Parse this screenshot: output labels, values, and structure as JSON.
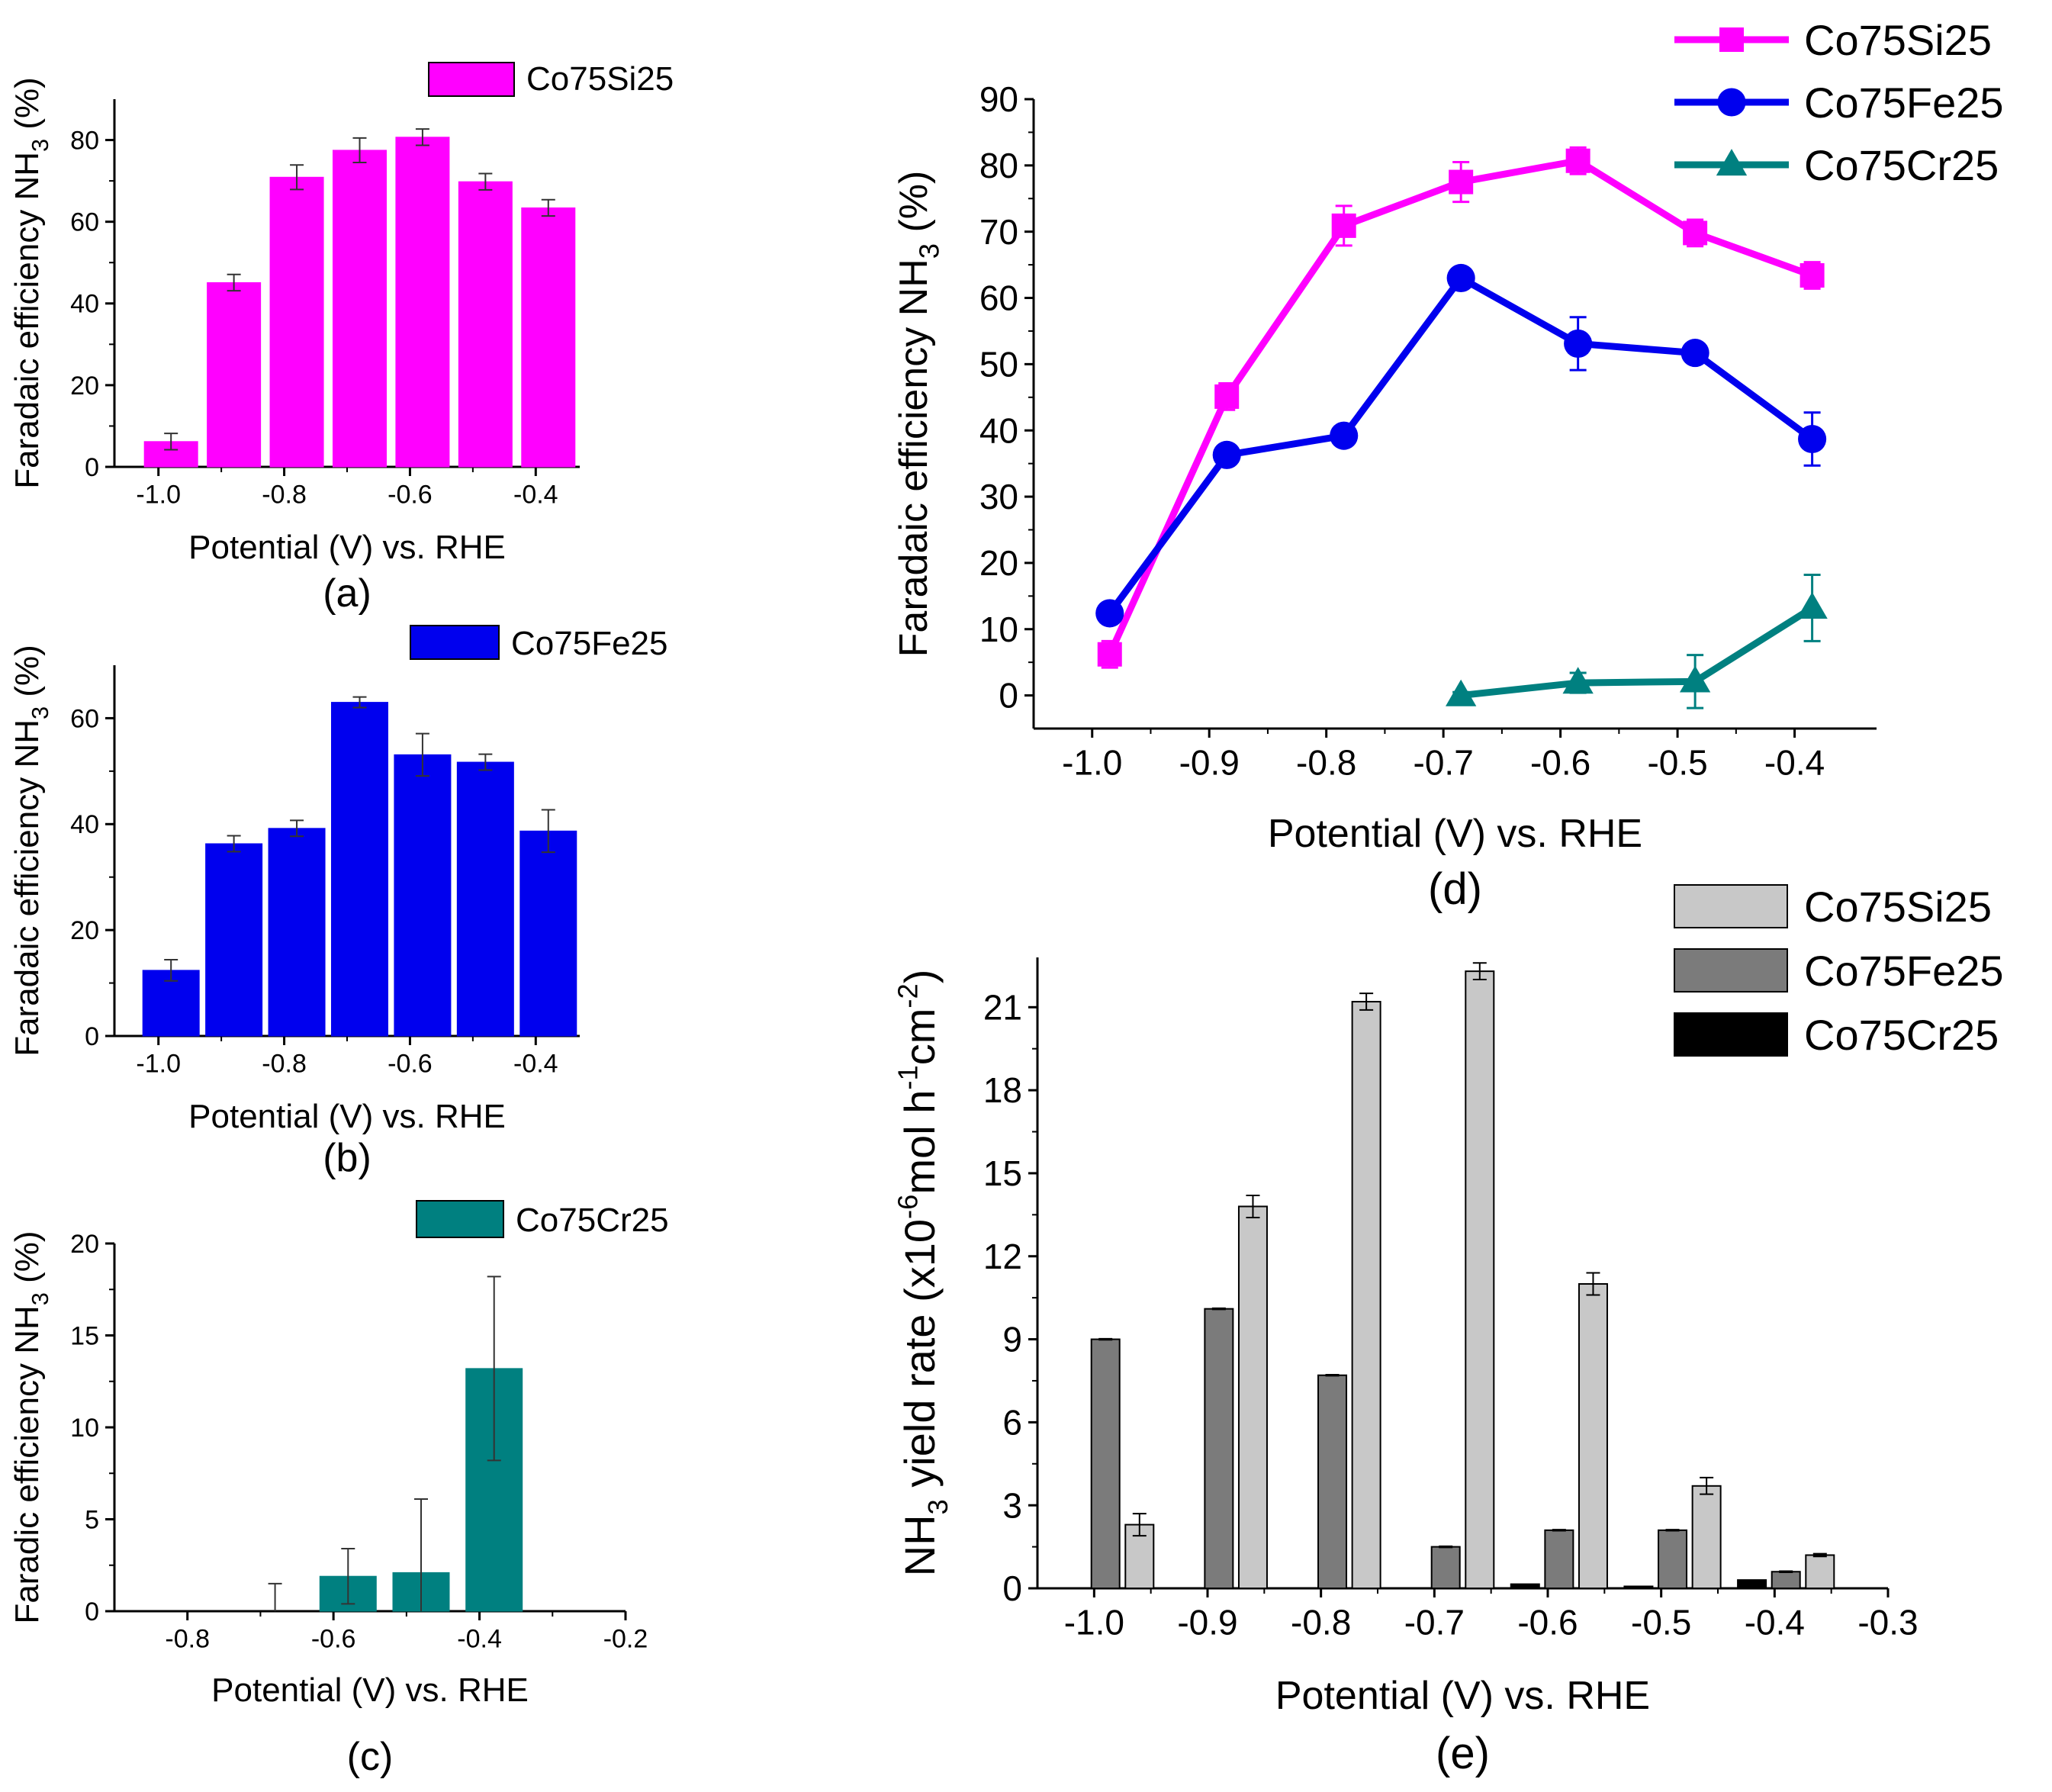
{
  "chart_data": [
    {
      "panel": "a",
      "type": "bar",
      "caption": "(a)",
      "legend": [
        "Co75Si25"
      ],
      "xlabel": "Potential (V) vs. RHE",
      "ylabel": "Faradaic efficiency NH3 (%)",
      "xlim": [
        -1.07,
        -0.33
      ],
      "ylim": [
        0,
        90
      ],
      "xticks": [
        -1.0,
        -0.8,
        -0.6,
        -0.4
      ],
      "xtick_labels": [
        "-1.0",
        "-0.8",
        "-0.6",
        "-0.4"
      ],
      "yticks": [
        0,
        20,
        40,
        60,
        80
      ],
      "ytick_labels": [
        "0",
        "20",
        "40",
        "60",
        "80"
      ],
      "series": [
        {
          "name": "Co75Si25",
          "color": "#ff00ff",
          "x": [
            -0.98,
            -0.88,
            -0.78,
            -0.68,
            -0.58,
            -0.48,
            -0.38
          ],
          "values": [
            6.2,
            45.1,
            70.9,
            77.5,
            80.7,
            69.8,
            63.4
          ],
          "errors": [
            2.0,
            2.0,
            3.0,
            3.0,
            2.0,
            2.0,
            2.0
          ]
        }
      ]
    },
    {
      "panel": "b",
      "type": "bar",
      "caption": "(b)",
      "legend": [
        "Co75Fe25"
      ],
      "xlabel": "Potential (V) vs. RHE",
      "ylabel": "Faradaic efficiency NH3 (%)",
      "xlim": [
        -1.07,
        -0.33
      ],
      "ylim": [
        0,
        70
      ],
      "xticks": [
        -1.0,
        -0.8,
        -0.6,
        -0.4
      ],
      "xtick_labels": [
        "-1.0",
        "-0.8",
        "-0.6",
        "-0.4"
      ],
      "yticks": [
        0,
        20,
        40,
        60
      ],
      "ytick_labels": [
        "0",
        "20",
        "40",
        "60"
      ],
      "series": [
        {
          "name": "Co75Fe25",
          "color": "#0000ee",
          "x": [
            -0.98,
            -0.88,
            -0.78,
            -0.68,
            -0.58,
            -0.48,
            -0.38
          ],
          "values": [
            12.4,
            36.3,
            39.2,
            63.0,
            53.1,
            51.7,
            38.7
          ],
          "errors": [
            2.0,
            1.5,
            1.5,
            1.0,
            4.0,
            1.5,
            4.0
          ]
        }
      ]
    },
    {
      "panel": "c",
      "type": "bar",
      "caption": "(c)",
      "legend": [
        "Co75Cr25"
      ],
      "xlabel": "Potential (V) vs. RHE",
      "ylabel": "Faradic efficiency NH3 (%)",
      "xlim": [
        -0.9,
        -0.2
      ],
      "ylim": [
        0,
        20
      ],
      "xticks": [
        -0.8,
        -0.6,
        -0.4,
        -0.2
      ],
      "xtick_labels": [
        "-0.8",
        "-0.6",
        "-0.4",
        "-0.2"
      ],
      "yticks": [
        0,
        5,
        10,
        15,
        20
      ],
      "ytick_labels": [
        "0",
        "5",
        "10",
        "15",
        "20"
      ],
      "series": [
        {
          "name": "Co75Cr25",
          "color": "#008080",
          "x": [
            -0.68,
            -0.58,
            -0.48,
            -0.38
          ],
          "values": [
            0.0,
            1.9,
            2.1,
            13.2
          ],
          "errors": [
            1.5,
            1.5,
            4.0,
            5.0
          ]
        }
      ]
    },
    {
      "panel": "d",
      "type": "line",
      "caption": "(d)",
      "xlabel": "Potential (V) vs. RHE",
      "ylabel": "Faradaic efficiency NH3 (%)",
      "xlim": [
        -1.05,
        -0.33
      ],
      "ylim": [
        -5,
        90
      ],
      "xticks": [
        -1.0,
        -0.9,
        -0.8,
        -0.7,
        -0.6,
        -0.5,
        -0.4
      ],
      "xtick_labels": [
        "-1.0",
        "-0.9",
        "-0.8",
        "-0.7",
        "-0.6",
        "-0.5",
        "-0.4"
      ],
      "yticks": [
        0,
        10,
        20,
        30,
        40,
        50,
        60,
        70,
        80,
        90
      ],
      "ytick_labels": [
        "0",
        "10",
        "20",
        "30",
        "40",
        "50",
        "60",
        "70",
        "80",
        "90"
      ],
      "series": [
        {
          "name": "Co75Si25",
          "color": "#ff00ff",
          "marker": "square",
          "x": [
            -0.985,
            -0.885,
            -0.785,
            -0.685,
            -0.585,
            -0.485,
            -0.385
          ],
          "values": [
            6.2,
            45.1,
            70.9,
            77.5,
            80.7,
            69.8,
            63.4
          ],
          "errors": [
            2.0,
            2.0,
            3.0,
            3.0,
            2.0,
            2.0,
            2.0
          ]
        },
        {
          "name": "Co75Fe25",
          "color": "#0000ee",
          "marker": "circle",
          "x": [
            -0.985,
            -0.885,
            -0.785,
            -0.685,
            -0.585,
            -0.485,
            -0.385
          ],
          "values": [
            12.4,
            36.3,
            39.2,
            63.0,
            53.1,
            51.7,
            38.7
          ],
          "errors": [
            0.8,
            0.8,
            0.8,
            0.8,
            4.0,
            0.8,
            4.0
          ]
        },
        {
          "name": "Co75Cr25",
          "color": "#008080",
          "marker": "triangle",
          "x": [
            -0.685,
            -0.585,
            -0.485,
            -0.385
          ],
          "values": [
            0.0,
            1.9,
            2.1,
            13.2
          ],
          "errors": [
            0.5,
            1.5,
            4.0,
            5.0
          ]
        }
      ]
    },
    {
      "panel": "e",
      "type": "bar",
      "caption": "(e)",
      "xlabel": "Potential (V) vs. RHE",
      "ylabel": "NH3 yield rate (x10-6 mol h-1 cm-2)",
      "xlim": [
        -1.05,
        -0.3
      ],
      "ylim": [
        0,
        22.8
      ],
      "xticks": [
        -1.0,
        -0.9,
        -0.8,
        -0.7,
        -0.6,
        -0.5,
        -0.4,
        -0.3
      ],
      "xtick_labels": [
        "-1.0",
        "-0.9",
        "-0.8",
        "-0.7",
        "-0.6",
        "-0.5",
        "-0.4",
        "-0.3"
      ],
      "yticks": [
        0,
        3,
        6,
        9,
        12,
        15,
        18,
        21
      ],
      "ytick_labels": [
        "0",
        "3",
        "6",
        "9",
        "12",
        "15",
        "18",
        "21"
      ],
      "series": [
        {
          "name": "Co75Si25",
          "color": "#c8c8c8",
          "x": [
            -0.96,
            -0.86,
            -0.76,
            -0.66,
            -0.56,
            -0.46,
            -0.36
          ],
          "values": [
            2.3,
            13.8,
            21.2,
            22.3,
            11.0,
            3.7,
            1.2
          ],
          "errors": [
            0.4,
            0.4,
            0.3,
            0.3,
            0.4,
            0.3,
            0.05
          ]
        },
        {
          "name": "Co75Fe25",
          "color": "#7b7b7b",
          "x": [
            -0.99,
            -0.89,
            -0.79,
            -0.69,
            -0.59,
            -0.49,
            -0.39
          ],
          "values": [
            9.0,
            10.1,
            7.7,
            1.5,
            2.1,
            2.1,
            0.6
          ],
          "errors": [
            0.02,
            0.02,
            0.02,
            0.02,
            0.02,
            0.02,
            0.02
          ]
        },
        {
          "name": "Co75Cr25",
          "color": "#000000",
          "x": [
            -0.62,
            -0.52,
            -0.42
          ],
          "values": [
            0.15,
            0.07,
            0.3
          ],
          "errors": [
            0,
            0,
            0
          ]
        }
      ]
    }
  ]
}
